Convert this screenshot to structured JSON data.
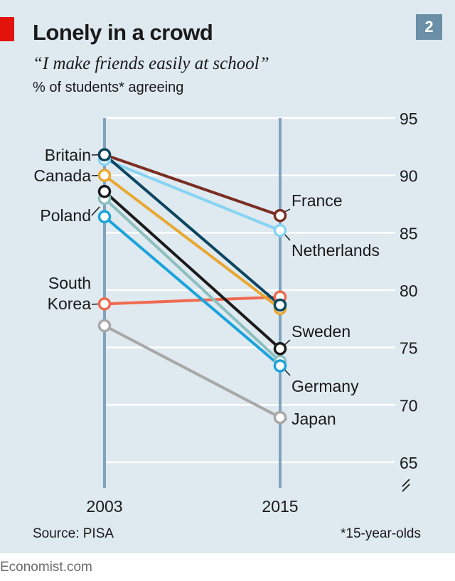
{
  "header": {
    "title": "Lonely in a crowd",
    "number": "2",
    "subtitle": "“I make friends easily at school”",
    "ylabel": "% of students* agreeing"
  },
  "footer": {
    "source": "Source: PISA",
    "footnote": "*15-year-olds",
    "publisher": "Economist.com"
  },
  "colors": {
    "background": "#dfe9f0",
    "brand_red": "#e3120b",
    "axis_blue": "#7ea3bd"
  },
  "chart_data": {
    "type": "line",
    "title": "Lonely in a crowd",
    "subtitle": "“I make friends easily at school”",
    "ylabel": "% of students* agreeing",
    "x": [
      "2003",
      "2015"
    ],
    "ylim": [
      65,
      95
    ],
    "yticks": [
      65,
      70,
      75,
      80,
      85,
      90,
      95
    ],
    "axis_break": true,
    "grid": true,
    "series": [
      {
        "name": "France",
        "values": [
          91.8,
          86.5
        ],
        "color": "#7a2e22"
      },
      {
        "name": "Netherlands",
        "values": [
          91.4,
          85.2
        ],
        "color": "#86d3f2"
      },
      {
        "name": "Britain",
        "values": [
          91.8,
          78.7
        ],
        "color": "#0c4660"
      },
      {
        "name": "Canada",
        "values": [
          90.0,
          78.4
        ],
        "color": "#e8a830"
      },
      {
        "name": "Poland",
        "values": [
          88.0,
          73.8
        ],
        "color": "#8cbfbf"
      },
      {
        "name": "Sweden",
        "values": [
          88.6,
          74.9
        ],
        "color": "#1a1a1a"
      },
      {
        "name": "Germany",
        "values": [
          86.4,
          73.4
        ],
        "color": "#1aa3dc"
      },
      {
        "name": "South Korea",
        "values": [
          78.8,
          79.4
        ],
        "color": "#ef6a4f"
      },
      {
        "name": "Japan",
        "values": [
          76.9,
          68.9
        ],
        "color": "#a8a8a8"
      }
    ],
    "left_labels": [
      {
        "text": "Britain",
        "series": "Britain"
      },
      {
        "text": "Canada",
        "series": "Canada"
      },
      {
        "text": "Poland",
        "series": "Poland"
      },
      {
        "text": "South",
        "series": "South Korea"
      },
      {
        "text": "Korea",
        "series": "South Korea"
      }
    ],
    "right_labels": [
      {
        "text": "France",
        "series": "France"
      },
      {
        "text": "Netherlands",
        "series": "Netherlands"
      },
      {
        "text": "Sweden",
        "series": "Sweden"
      },
      {
        "text": "Germany",
        "series": "Germany"
      },
      {
        "text": "Japan",
        "series": "Japan"
      }
    ]
  }
}
